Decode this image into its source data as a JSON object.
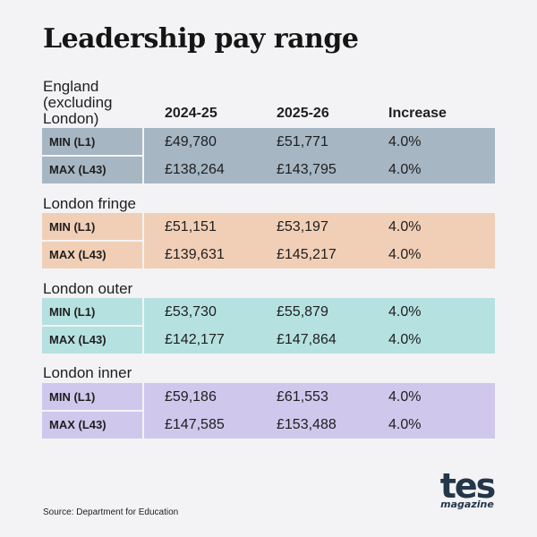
{
  "title": "Leadership pay range",
  "columns": {
    "year1": "2024-25",
    "year2": "2025-26",
    "increase": "Increase"
  },
  "regions": [
    {
      "name_lines": [
        "England",
        "(excluding",
        "London)"
      ],
      "color": "#a6b6c3",
      "rows": [
        {
          "label": "MIN (L1)",
          "year1": "£49,780",
          "year2": "£51,771",
          "increase": "4.0%"
        },
        {
          "label": "MAX (L43)",
          "year1": "£138,264",
          "year2": "£143,795",
          "increase": "4.0%"
        }
      ]
    },
    {
      "name_lines": [
        "London fringe"
      ],
      "color": "#f1cfb6",
      "rows": [
        {
          "label": "MIN (L1)",
          "year1": "£51,151",
          "year2": "£53,197",
          "increase": "4.0%"
        },
        {
          "label": "MAX (L43)",
          "year1": "£139,631",
          "year2": "£145,217",
          "increase": "4.0%"
        }
      ]
    },
    {
      "name_lines": [
        "London outer"
      ],
      "color": "#b6e1e1",
      "rows": [
        {
          "label": "MIN (L1)",
          "year1": "£53,730",
          "year2": "£55,879",
          "increase": "4.0%"
        },
        {
          "label": "MAX (L43)",
          "year1": "£142,177",
          "year2": "£147,864",
          "increase": "4.0%"
        }
      ]
    },
    {
      "name_lines": [
        "London inner"
      ],
      "color": "#cfc8ec",
      "rows": [
        {
          "label": "MIN (L1)",
          "year1": "£59,186",
          "year2": "£61,553",
          "increase": "4.0%"
        },
        {
          "label": "MAX (L43)",
          "year1": "£147,585",
          "year2": "£153,488",
          "increase": "4.0%"
        }
      ]
    }
  ],
  "source": "Source: Department for Education",
  "logo": {
    "main": "tes",
    "sub": "magazine",
    "color": "#24364a"
  }
}
